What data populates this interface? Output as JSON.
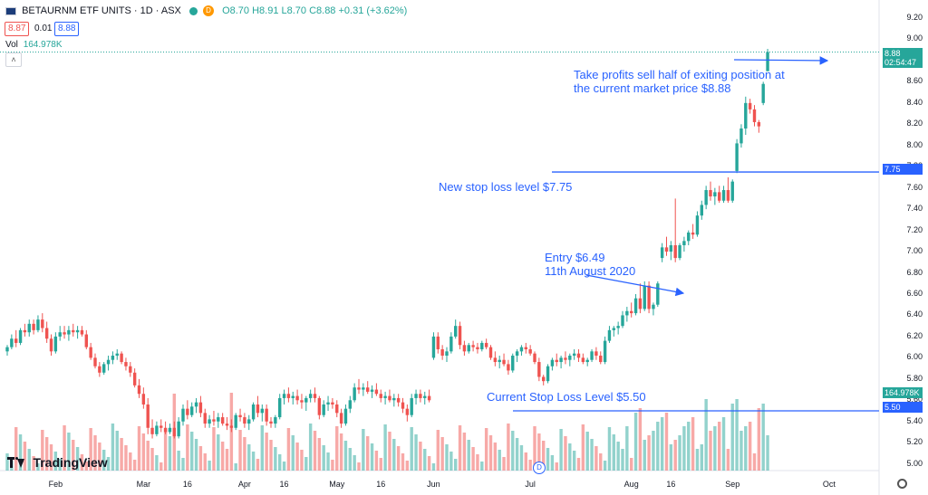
{
  "header": {
    "symbol": "BETAURNM ETF UNITS · 1D · ASX",
    "d_badge": "D",
    "ohlc": "O8.70 H8.91 L8.70 C8.88 +0.31 (+3.62%)",
    "bid": "8.87",
    "spread": "0.01",
    "ask": "8.88",
    "vol_label": "Vol",
    "vol_value": "164.978K",
    "collapse_icon": "chevron-up-icon"
  },
  "price_tags": {
    "last": "8.88",
    "countdown": "02:54:47",
    "stop_new": "7.75",
    "volume": "164.978K",
    "stop_current": "5.50"
  },
  "annotations": {
    "take_profit_1": "Take profits sell half of exiting position at",
    "take_profit_2": "the current market price $8.88",
    "new_stop": "New stop loss level $7.75",
    "entry_1": "Entry $6.49",
    "entry_2": "11th August 2020",
    "current_stop": "Current Stop Loss Level $5.50"
  },
  "branding": {
    "logo_text": "TradingView"
  },
  "event_marker": "D",
  "chart_data": {
    "type": "candlestick",
    "title": "BETAURNM ETF UNITS · 1D · ASX",
    "y_ticks": [
      "9.20",
      "9.00",
      "8.80",
      "8.60",
      "8.40",
      "8.20",
      "8.00",
      "7.80",
      "7.60",
      "7.40",
      "7.20",
      "7.00",
      "6.80",
      "6.60",
      "6.40",
      "6.20",
      "6.00",
      "5.80",
      "5.60",
      "5.40",
      "5.20",
      "5.00"
    ],
    "ylim": [
      4.93,
      9.23
    ],
    "x_ticks": [
      {
        "label": "Feb",
        "i": 11
      },
      {
        "label": "Mar",
        "i": 31
      },
      {
        "label": "16",
        "i": 41
      },
      {
        "label": "Apr",
        "i": 54
      },
      {
        "label": "16",
        "i": 63
      },
      {
        "label": "May",
        "i": 75
      },
      {
        "label": "16",
        "i": 85
      },
      {
        "label": "Jun",
        "i": 97
      },
      {
        "label": "Jul",
        "i": 119
      },
      {
        "label": "Aug",
        "i": 142
      },
      {
        "label": "16",
        "i": 151
      },
      {
        "label": "Sep",
        "i": 165
      },
      {
        "label": "Oct",
        "i": 187
      }
    ],
    "stop_levels": [
      7.75,
      5.5
    ],
    "last_price": 8.88,
    "up_color": "#26a69a",
    "down_color": "#ef5350",
    "legend": "none",
    "grid": false,
    "candles_ohlc": [
      [
        6.06,
        6.12,
        6.02,
        6.1
      ],
      [
        6.1,
        6.22,
        6.08,
        6.18
      ],
      [
        6.18,
        6.26,
        6.1,
        6.14
      ],
      [
        6.14,
        6.28,
        6.12,
        6.26
      ],
      [
        6.26,
        6.32,
        6.2,
        6.24
      ],
      [
        6.24,
        6.36,
        6.2,
        6.32
      ],
      [
        6.32,
        6.36,
        6.22,
        6.26
      ],
      [
        6.26,
        6.4,
        6.24,
        6.36
      ],
      [
        6.36,
        6.42,
        6.24,
        6.28
      ],
      [
        6.28,
        6.34,
        6.14,
        6.18
      ],
      [
        6.18,
        6.22,
        6.02,
        6.06
      ],
      [
        6.06,
        6.24,
        6.04,
        6.2
      ],
      [
        6.2,
        6.3,
        6.16,
        6.24
      ],
      [
        6.24,
        6.3,
        6.18,
        6.22
      ],
      [
        6.22,
        6.3,
        6.16,
        6.26
      ],
      [
        6.26,
        6.32,
        6.2,
        6.24
      ],
      [
        6.24,
        6.3,
        6.18,
        6.26
      ],
      [
        6.26,
        6.3,
        6.2,
        6.22
      ],
      [
        6.22,
        6.26,
        6.08,
        6.1
      ],
      [
        6.1,
        6.14,
        5.98,
        6.0
      ],
      [
        6.0,
        6.04,
        5.9,
        5.92
      ],
      [
        5.92,
        5.96,
        5.82,
        5.86
      ],
      [
        5.86,
        5.96,
        5.84,
        5.94
      ],
      [
        5.94,
        6.02,
        5.88,
        5.98
      ],
      [
        5.98,
        6.06,
        5.94,
        6.02
      ],
      [
        6.02,
        6.08,
        5.98,
        6.04
      ],
      [
        6.04,
        6.06,
        5.94,
        5.96
      ],
      [
        5.96,
        6.0,
        5.88,
        5.92
      ],
      [
        5.92,
        5.96,
        5.82,
        5.86
      ],
      [
        5.86,
        5.9,
        5.72,
        5.74
      ],
      [
        5.74,
        5.8,
        5.62,
        5.66
      ],
      [
        5.66,
        5.72,
        5.52,
        5.56
      ],
      [
        5.56,
        5.62,
        5.28,
        5.34
      ],
      [
        5.34,
        5.42,
        5.24,
        5.28
      ],
      [
        5.28,
        5.4,
        5.26,
        5.36
      ],
      [
        5.36,
        5.42,
        5.3,
        5.34
      ],
      [
        5.34,
        5.4,
        5.28,
        5.3
      ],
      [
        5.3,
        5.38,
        5.28,
        5.34
      ],
      [
        5.34,
        5.4,
        5.24,
        5.26
      ],
      [
        5.26,
        5.44,
        5.24,
        5.4
      ],
      [
        5.4,
        5.56,
        5.36,
        5.52
      ],
      [
        5.52,
        5.6,
        5.42,
        5.46
      ],
      [
        5.46,
        5.58,
        5.44,
        5.54
      ],
      [
        5.54,
        5.62,
        5.48,
        5.58
      ],
      [
        5.58,
        5.64,
        5.44,
        5.48
      ],
      [
        5.48,
        5.52,
        5.34,
        5.38
      ],
      [
        5.38,
        5.46,
        5.34,
        5.42
      ],
      [
        5.42,
        5.5,
        5.36,
        5.4
      ],
      [
        5.4,
        5.48,
        5.34,
        5.44
      ],
      [
        5.44,
        5.48,
        5.36,
        5.38
      ],
      [
        5.38,
        5.44,
        5.32,
        5.36
      ],
      [
        5.36,
        5.42,
        5.3,
        5.34
      ],
      [
        5.34,
        5.48,
        5.32,
        5.46
      ],
      [
        5.46,
        5.52,
        5.4,
        5.44
      ],
      [
        5.44,
        5.48,
        5.34,
        5.38
      ],
      [
        5.38,
        5.46,
        5.32,
        5.42
      ],
      [
        5.42,
        5.58,
        5.4,
        5.56
      ],
      [
        5.56,
        5.64,
        5.44,
        5.48
      ],
      [
        5.48,
        5.56,
        5.4,
        5.52
      ],
      [
        5.52,
        5.56,
        5.36,
        5.4
      ],
      [
        5.4,
        5.44,
        5.34,
        5.38
      ],
      [
        5.38,
        5.46,
        5.34,
        5.44
      ],
      [
        5.44,
        5.66,
        5.42,
        5.62
      ],
      [
        5.62,
        5.7,
        5.56,
        5.66
      ],
      [
        5.66,
        5.72,
        5.58,
        5.62
      ],
      [
        5.62,
        5.68,
        5.56,
        5.64
      ],
      [
        5.64,
        5.7,
        5.56,
        5.6
      ],
      [
        5.6,
        5.66,
        5.52,
        5.58
      ],
      [
        5.58,
        5.64,
        5.5,
        5.62
      ],
      [
        5.62,
        5.7,
        5.58,
        5.66
      ],
      [
        5.66,
        5.72,
        5.58,
        5.62
      ],
      [
        5.62,
        5.64,
        5.42,
        5.46
      ],
      [
        5.46,
        5.6,
        5.44,
        5.56
      ],
      [
        5.56,
        5.64,
        5.5,
        5.58
      ],
      [
        5.58,
        5.62,
        5.52,
        5.56
      ],
      [
        5.56,
        5.6,
        5.44,
        5.48
      ],
      [
        5.48,
        5.52,
        5.34,
        5.38
      ],
      [
        5.38,
        5.56,
        5.36,
        5.52
      ],
      [
        5.52,
        5.64,
        5.48,
        5.6
      ],
      [
        5.6,
        5.76,
        5.58,
        5.72
      ],
      [
        5.72,
        5.8,
        5.66,
        5.7
      ],
      [
        5.7,
        5.76,
        5.64,
        5.72
      ],
      [
        5.72,
        5.78,
        5.66,
        5.68
      ],
      [
        5.68,
        5.74,
        5.62,
        5.7
      ],
      [
        5.7,
        5.76,
        5.64,
        5.66
      ],
      [
        5.66,
        5.7,
        5.58,
        5.62
      ],
      [
        5.62,
        5.68,
        5.56,
        5.64
      ],
      [
        5.64,
        5.7,
        5.58,
        5.6
      ],
      [
        5.6,
        5.66,
        5.54,
        5.62
      ],
      [
        5.62,
        5.66,
        5.54,
        5.58
      ],
      [
        5.58,
        5.62,
        5.48,
        5.52
      ],
      [
        5.52,
        5.56,
        5.4,
        5.46
      ],
      [
        5.46,
        5.66,
        5.44,
        5.62
      ],
      [
        5.62,
        5.7,
        5.56,
        5.66
      ],
      [
        5.66,
        5.7,
        5.58,
        5.62
      ],
      [
        5.62,
        5.68,
        5.56,
        5.64
      ],
      [
        5.64,
        5.7,
        5.58,
        5.6
      ],
      [
        6.0,
        6.24,
        5.98,
        6.2
      ],
      [
        6.2,
        6.24,
        6.04,
        6.08
      ],
      [
        6.08,
        6.12,
        5.98,
        6.02
      ],
      [
        6.02,
        6.1,
        5.96,
        6.06
      ],
      [
        6.06,
        6.24,
        6.04,
        6.2
      ],
      [
        6.2,
        6.36,
        6.18,
        6.3
      ],
      [
        6.3,
        6.34,
        6.08,
        6.12
      ],
      [
        6.12,
        6.16,
        6.02,
        6.06
      ],
      [
        6.06,
        6.14,
        6.04,
        6.12
      ],
      [
        6.12,
        6.16,
        6.06,
        6.1
      ],
      [
        6.1,
        6.14,
        6.04,
        6.08
      ],
      [
        6.08,
        6.16,
        6.06,
        6.14
      ],
      [
        6.14,
        6.18,
        6.08,
        6.1
      ],
      [
        6.1,
        6.12,
        5.98,
        6.0
      ],
      [
        6.0,
        6.06,
        5.92,
        5.96
      ],
      [
        5.96,
        6.02,
        5.9,
        5.98
      ],
      [
        5.98,
        6.04,
        5.92,
        5.94
      ],
      [
        5.94,
        5.98,
        5.84,
        5.88
      ],
      [
        5.88,
        6.04,
        5.86,
        6.02
      ],
      [
        6.02,
        6.08,
        5.96,
        6.06
      ],
      [
        6.06,
        6.12,
        6.02,
        6.1
      ],
      [
        6.1,
        6.14,
        6.04,
        6.08
      ],
      [
        6.08,
        6.12,
        6.02,
        6.04
      ],
      [
        6.04,
        6.06,
        5.94,
        5.96
      ],
      [
        5.96,
        6.0,
        5.78,
        5.82
      ],
      [
        5.82,
        5.84,
        5.74,
        5.78
      ],
      [
        5.78,
        5.94,
        5.76,
        5.92
      ],
      [
        5.92,
        6.0,
        5.88,
        5.98
      ],
      [
        5.98,
        6.04,
        5.92,
        5.96
      ],
      [
        5.96,
        6.02,
        5.9,
        6.0
      ],
      [
        6.0,
        6.06,
        5.94,
        5.98
      ],
      [
        5.98,
        6.04,
        5.92,
        6.02
      ],
      [
        6.02,
        6.08,
        5.98,
        6.04
      ],
      [
        6.04,
        6.08,
        5.96,
        6.0
      ],
      [
        6.0,
        6.04,
        5.94,
        5.96
      ],
      [
        5.96,
        6.0,
        5.92,
        5.98
      ],
      [
        5.98,
        6.08,
        5.96,
        6.06
      ],
      [
        6.06,
        6.1,
        5.98,
        6.02
      ],
      [
        6.02,
        6.06,
        5.94,
        5.96
      ],
      [
        5.96,
        6.2,
        5.94,
        6.16
      ],
      [
        6.16,
        6.3,
        6.14,
        6.26
      ],
      [
        6.26,
        6.3,
        6.2,
        6.28
      ],
      [
        6.28,
        6.34,
        6.22,
        6.3
      ],
      [
        6.3,
        6.44,
        6.28,
        6.4
      ],
      [
        6.4,
        6.48,
        6.34,
        6.44
      ],
      [
        6.44,
        6.52,
        6.38,
        6.42
      ],
      [
        6.42,
        6.6,
        6.4,
        6.56
      ],
      [
        6.56,
        6.7,
        6.42,
        6.46
      ],
      [
        6.46,
        6.72,
        6.44,
        6.68
      ],
      [
        6.68,
        6.72,
        6.42,
        6.46
      ],
      [
        6.46,
        6.52,
        6.4,
        6.5
      ],
      [
        6.5,
        6.72,
        6.48,
        6.7
      ],
      [
        6.94,
        7.08,
        6.9,
        7.04
      ],
      [
        7.04,
        7.14,
        6.96,
        7.0
      ],
      [
        7.0,
        7.1,
        6.92,
        7.06
      ],
      [
        7.06,
        7.5,
        6.9,
        6.94
      ],
      [
        6.94,
        7.08,
        6.92,
        7.06
      ],
      [
        7.06,
        7.14,
        7.0,
        7.1
      ],
      [
        7.1,
        7.2,
        7.06,
        7.18
      ],
      [
        7.18,
        7.26,
        7.12,
        7.16
      ],
      [
        7.16,
        7.38,
        7.14,
        7.34
      ],
      [
        7.34,
        7.48,
        7.3,
        7.44
      ],
      [
        7.44,
        7.62,
        7.4,
        7.58
      ],
      [
        7.58,
        7.66,
        7.48,
        7.52
      ],
      [
        7.52,
        7.6,
        7.44,
        7.56
      ],
      [
        7.56,
        7.62,
        7.46,
        7.48
      ],
      [
        7.48,
        7.62,
        7.46,
        7.58
      ],
      [
        7.58,
        7.7,
        7.46,
        7.48
      ],
      [
        7.48,
        7.68,
        7.46,
        7.66
      ],
      [
        7.76,
        8.06,
        7.74,
        8.02
      ],
      [
        8.02,
        8.2,
        7.98,
        8.16
      ],
      [
        8.16,
        8.46,
        8.1,
        8.4
      ],
      [
        8.4,
        8.44,
        8.3,
        8.34
      ],
      [
        8.34,
        8.38,
        8.18,
        8.22
      ],
      [
        8.22,
        8.24,
        8.12,
        8.18
      ],
      [
        8.4,
        8.6,
        8.38,
        8.58
      ],
      [
        8.7,
        8.91,
        8.7,
        8.88
      ]
    ]
  }
}
